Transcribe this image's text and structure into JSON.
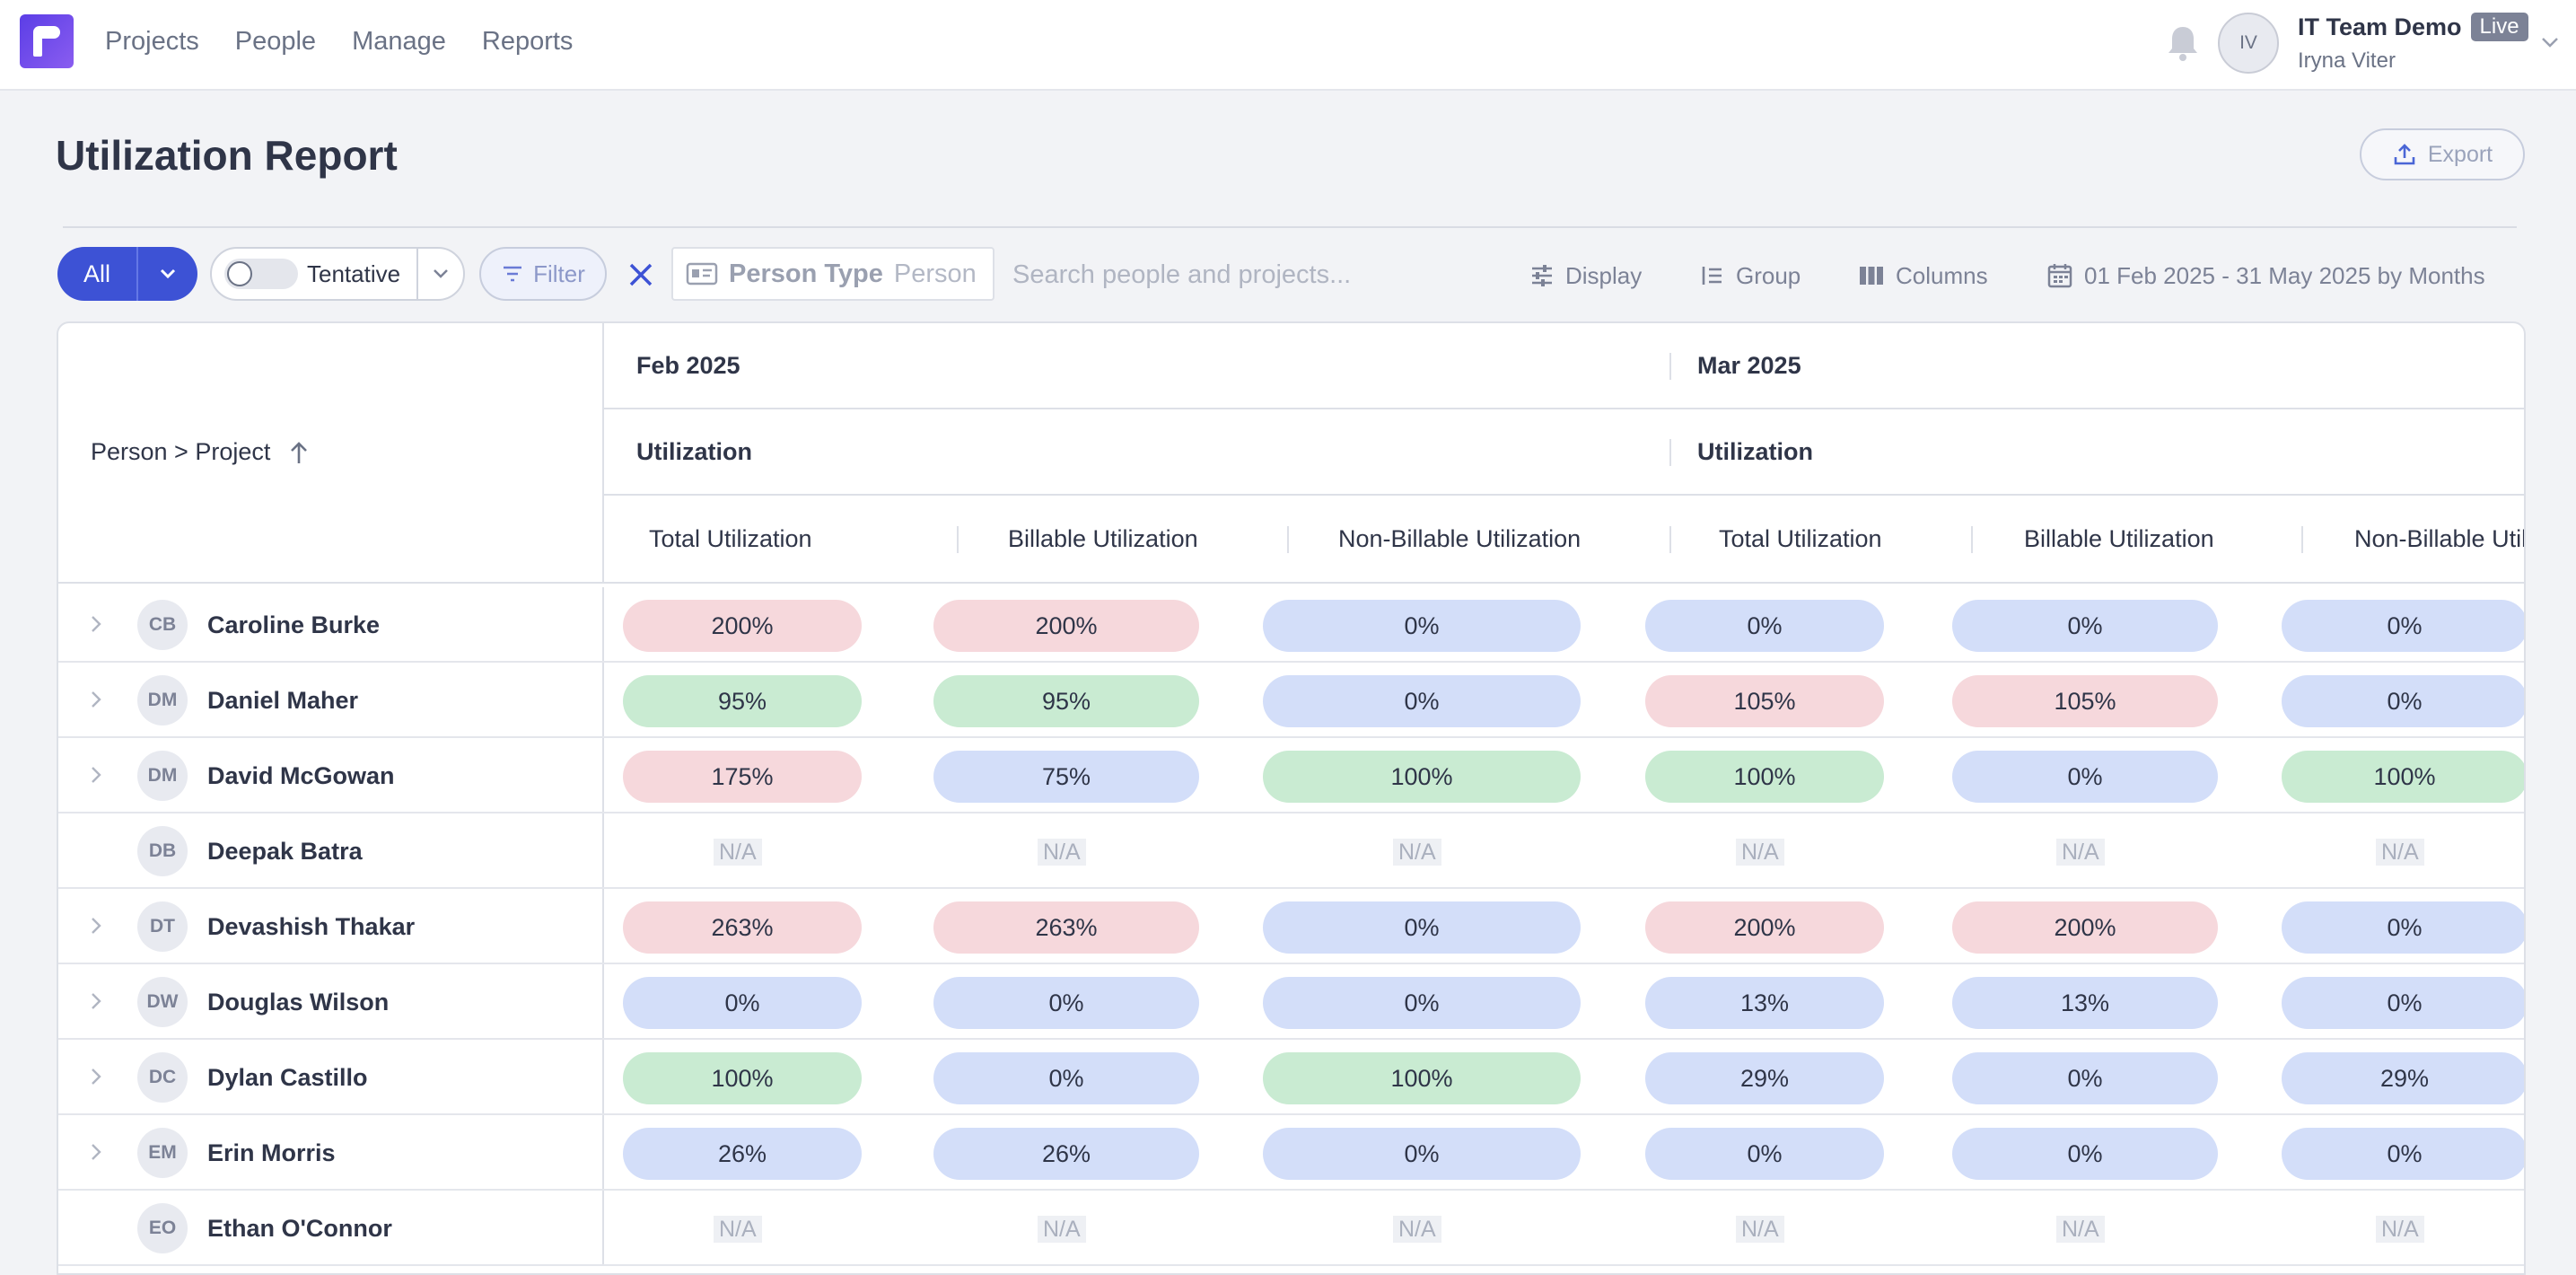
{
  "nav": {
    "items": [
      "Projects",
      "People",
      "Manage",
      "Reports"
    ]
  },
  "account": {
    "initials": "IV",
    "team": "IT Team Demo",
    "badge": "Live",
    "user": "Iryna Viter"
  },
  "page": {
    "title": "Utilization Report",
    "export_label": "Export"
  },
  "toolbar": {
    "all_label": "All",
    "tentative_label": "Tentative",
    "filter_label": "Filter",
    "person_type_key": "Person Type",
    "person_type_value": "Person",
    "search_placeholder": "Search people and projects...",
    "display_label": "Display",
    "group_label": "Group",
    "columns_label": "Columns",
    "date_range": "01 Feb 2025 - 31 May 2025 by Months"
  },
  "table": {
    "row_header": "Person > Project",
    "months": [
      "Feb 2025",
      "Mar 2025"
    ],
    "group_label": "Utilization",
    "columns": [
      "Total Utilization",
      "Billable Utilization",
      "Non-Billable Utilization",
      "Total Utilization",
      "Billable Utilization",
      "Non-Billable Utilization"
    ],
    "rows": [
      {
        "initials": "CB",
        "name": "Caroline Burke",
        "expandable": true,
        "cells": [
          {
            "v": "200%",
            "c": "red"
          },
          {
            "v": "200%",
            "c": "red"
          },
          {
            "v": "0%",
            "c": "blue"
          },
          {
            "v": "0%",
            "c": "blue"
          },
          {
            "v": "0%",
            "c": "blue"
          },
          {
            "v": "0%",
            "c": "blue"
          }
        ]
      },
      {
        "initials": "DM",
        "name": "Daniel Maher",
        "expandable": true,
        "cells": [
          {
            "v": "95%",
            "c": "green"
          },
          {
            "v": "95%",
            "c": "green"
          },
          {
            "v": "0%",
            "c": "blue"
          },
          {
            "v": "105%",
            "c": "red"
          },
          {
            "v": "105%",
            "c": "red"
          },
          {
            "v": "0%",
            "c": "blue"
          }
        ]
      },
      {
        "initials": "DM",
        "name": "David McGowan",
        "expandable": true,
        "cells": [
          {
            "v": "175%",
            "c": "red"
          },
          {
            "v": "75%",
            "c": "blue"
          },
          {
            "v": "100%",
            "c": "green"
          },
          {
            "v": "100%",
            "c": "green"
          },
          {
            "v": "0%",
            "c": "blue"
          },
          {
            "v": "100%",
            "c": "green"
          }
        ]
      },
      {
        "initials": "DB",
        "name": "Deepak Batra",
        "expandable": false,
        "cells": [
          {
            "v": "N/A",
            "c": "na"
          },
          {
            "v": "N/A",
            "c": "na"
          },
          {
            "v": "N/A",
            "c": "na"
          },
          {
            "v": "N/A",
            "c": "na"
          },
          {
            "v": "N/A",
            "c": "na"
          },
          {
            "v": "N/A",
            "c": "na"
          }
        ]
      },
      {
        "initials": "DT",
        "name": "Devashish Thakar",
        "expandable": true,
        "cells": [
          {
            "v": "263%",
            "c": "red"
          },
          {
            "v": "263%",
            "c": "red"
          },
          {
            "v": "0%",
            "c": "blue"
          },
          {
            "v": "200%",
            "c": "red"
          },
          {
            "v": "200%",
            "c": "red"
          },
          {
            "v": "0%",
            "c": "blue"
          }
        ]
      },
      {
        "initials": "DW",
        "name": "Douglas Wilson",
        "expandable": true,
        "cells": [
          {
            "v": "0%",
            "c": "blue"
          },
          {
            "v": "0%",
            "c": "blue"
          },
          {
            "v": "0%",
            "c": "blue"
          },
          {
            "v": "13%",
            "c": "blue"
          },
          {
            "v": "13%",
            "c": "blue"
          },
          {
            "v": "0%",
            "c": "blue"
          }
        ]
      },
      {
        "initials": "DC",
        "name": "Dylan Castillo",
        "expandable": true,
        "cells": [
          {
            "v": "100%",
            "c": "green"
          },
          {
            "v": "0%",
            "c": "blue"
          },
          {
            "v": "100%",
            "c": "green"
          },
          {
            "v": "29%",
            "c": "blue"
          },
          {
            "v": "0%",
            "c": "blue"
          },
          {
            "v": "29%",
            "c": "blue"
          }
        ]
      },
      {
        "initials": "EM",
        "name": "Erin Morris",
        "expandable": true,
        "cells": [
          {
            "v": "26%",
            "c": "blue"
          },
          {
            "v": "26%",
            "c": "blue"
          },
          {
            "v": "0%",
            "c": "blue"
          },
          {
            "v": "0%",
            "c": "blue"
          },
          {
            "v": "0%",
            "c": "blue"
          },
          {
            "v": "0%",
            "c": "blue"
          }
        ]
      },
      {
        "initials": "EO",
        "name": "Ethan O'Connor",
        "expandable": false,
        "cells": [
          {
            "v": "N/A",
            "c": "na"
          },
          {
            "v": "N/A",
            "c": "na"
          },
          {
            "v": "N/A",
            "c": "na"
          },
          {
            "v": "N/A",
            "c": "na"
          },
          {
            "v": "N/A",
            "c": "na"
          },
          {
            "v": "N/A",
            "c": "na"
          }
        ]
      }
    ]
  },
  "colors": {
    "accent": "#3d52d5",
    "over": "#f6d8dc",
    "ok": "#c9ebd2",
    "under": "#d3def9"
  }
}
